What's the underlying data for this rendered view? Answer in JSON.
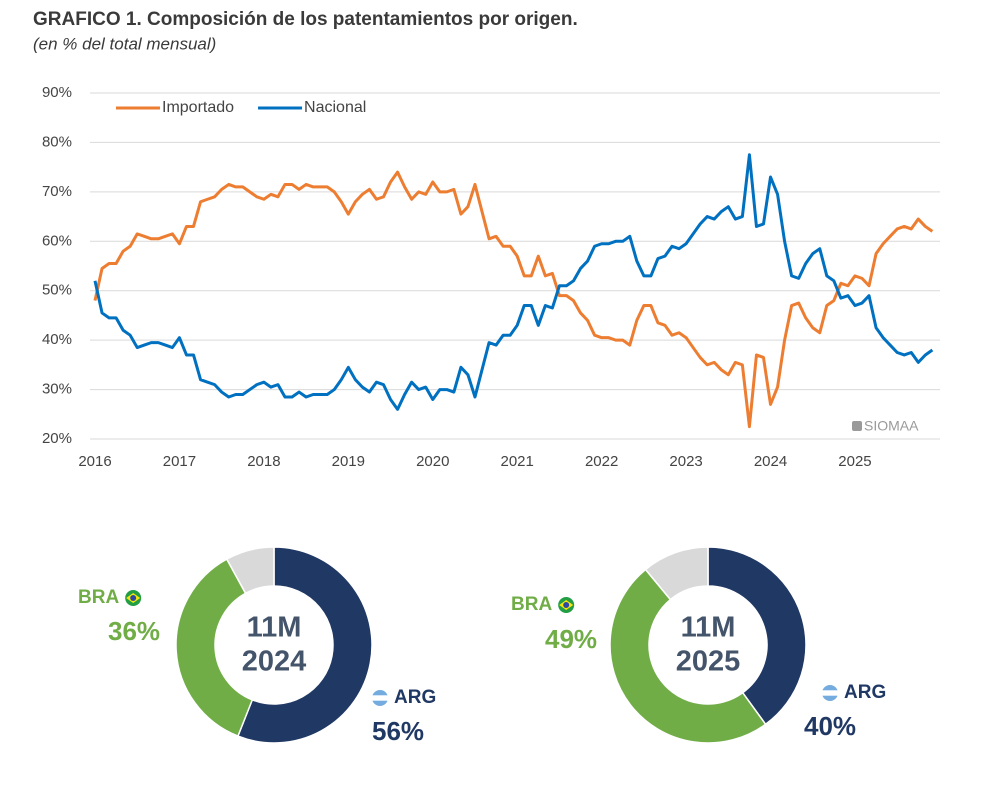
{
  "chart_data": [
    {
      "type": "line",
      "title": "GRAFICO 1. Composición de los patentamientos por origen.",
      "subtitle": "(en % del total mensual)",
      "source": "SIOMAA",
      "legend": "top-left",
      "grid": true,
      "ylim": [
        20,
        90
      ],
      "yticks": [
        {
          "value": 20,
          "label": "20%"
        },
        {
          "value": 30,
          "label": "30%"
        },
        {
          "value": 40,
          "label": "40%"
        },
        {
          "value": 50,
          "label": "50%"
        },
        {
          "value": 60,
          "label": "60%"
        },
        {
          "value": 70,
          "label": "70%"
        },
        {
          "value": 80,
          "label": "80%"
        },
        {
          "value": 90,
          "label": "90%"
        }
      ],
      "categories": [
        "2016",
        null,
        null,
        null,
        null,
        null,
        null,
        null,
        null,
        null,
        null,
        null,
        "2017",
        null,
        null,
        null,
        null,
        null,
        null,
        null,
        null,
        null,
        null,
        null,
        "2018",
        null,
        null,
        null,
        null,
        null,
        null,
        null,
        null,
        null,
        null,
        null,
        "2019",
        null,
        null,
        null,
        null,
        null,
        null,
        null,
        null,
        null,
        null,
        null,
        "2020",
        null,
        null,
        null,
        null,
        null,
        null,
        null,
        null,
        null,
        null,
        null,
        "2021",
        null,
        null,
        null,
        null,
        null,
        null,
        null,
        null,
        null,
        null,
        null,
        "2022",
        null,
        null,
        null,
        null,
        null,
        null,
        null,
        null,
        null,
        null,
        null,
        "2023",
        null,
        null,
        null,
        null,
        null,
        null,
        null,
        null,
        null,
        null,
        null,
        "2024",
        null,
        null,
        null,
        null,
        null,
        null,
        null,
        null,
        null,
        null,
        null,
        "2025",
        null,
        null,
        null,
        null,
        null,
        null,
        null,
        null,
        null,
        null,
        null
      ],
      "series": [
        {
          "name": "Importado",
          "color": "#ed7d31",
          "values": [
            48,
            54.5,
            55.5,
            55.5,
            58,
            59,
            61.5,
            61,
            60.5,
            60.5,
            61,
            61.5,
            59.5,
            63,
            63,
            68,
            68.5,
            69,
            70.5,
            71.5,
            71,
            71,
            70,
            69,
            68.5,
            69.5,
            69,
            71.5,
            71.5,
            70.5,
            71.5,
            71,
            71,
            71,
            70,
            68,
            65.5,
            68,
            69.5,
            70.5,
            68.5,
            69,
            72,
            74,
            71,
            68.5,
            70,
            69.5,
            72,
            70,
            70,
            70.5,
            65.5,
            67,
            71.5,
            66,
            60.5,
            61,
            59,
            59,
            57,
            53,
            53,
            57,
            53,
            53.5,
            49,
            49,
            48,
            45.5,
            44,
            41,
            40.5,
            40.5,
            40,
            40,
            39,
            44,
            47,
            47,
            43.5,
            43,
            41,
            41.5,
            40.5,
            38.5,
            36.5,
            35,
            35.5,
            34,
            33,
            35.5,
            35,
            22.5,
            37,
            36.5,
            27,
            30.5,
            40,
            47,
            47.5,
            44.5,
            42.5,
            41.5,
            47,
            48,
            51.5,
            51,
            53,
            52.5,
            51,
            57.5,
            59.5,
            61,
            62.5,
            63,
            62.5,
            64.5,
            63,
            62
          ]
        },
        {
          "name": "Nacional",
          "color": "#0070c0",
          "values": [
            52,
            45.5,
            44.5,
            44.5,
            42,
            41,
            38.5,
            39,
            39.5,
            39.5,
            39,
            38.5,
            40.5,
            37,
            37,
            32,
            31.5,
            31,
            29.5,
            28.5,
            29,
            29,
            30,
            31,
            31.5,
            30.5,
            31,
            28.5,
            28.5,
            29.5,
            28.5,
            29,
            29,
            29,
            30,
            32,
            34.5,
            32,
            30.5,
            29.5,
            31.5,
            31,
            28,
            26,
            29,
            31.5,
            30,
            30.5,
            28,
            30,
            30,
            29.5,
            34.5,
            33,
            28.5,
            34,
            39.5,
            39,
            41,
            41,
            43,
            47,
            47,
            43,
            47,
            46.5,
            51,
            51,
            52,
            54.5,
            56,
            59,
            59.5,
            59.5,
            60,
            60,
            61,
            56,
            53,
            53,
            56.5,
            57,
            59,
            58.5,
            59.5,
            61.5,
            63.5,
            65,
            64.5,
            66,
            67,
            64.5,
            65,
            77.5,
            63,
            63.5,
            73,
            69.5,
            60,
            53,
            52.5,
            55.5,
            57.5,
            58.5,
            53,
            52,
            48.5,
            49,
            47,
            47.5,
            49,
            42.5,
            40.5,
            39,
            37.5,
            37,
            37.5,
            35.5,
            37,
            38
          ]
        }
      ]
    },
    {
      "type": "pie",
      "title_lines": [
        "11M",
        "2024"
      ],
      "categories": [
        "ARG",
        "BRA",
        null
      ],
      "values": [
        56,
        36,
        8
      ],
      "value_labels": [
        "56%",
        "36%",
        null
      ],
      "colors": [
        "#203864",
        "#70ad47",
        "#d9d9d9"
      ]
    },
    {
      "type": "pie",
      "title_lines": [
        "11M",
        "2025"
      ],
      "categories": [
        "ARG",
        "BRA",
        null
      ],
      "values": [
        40,
        49,
        11
      ],
      "value_labels": [
        "40%",
        "49%",
        null
      ],
      "colors": [
        "#203864",
        "#70ad47",
        "#d9d9d9"
      ]
    }
  ]
}
